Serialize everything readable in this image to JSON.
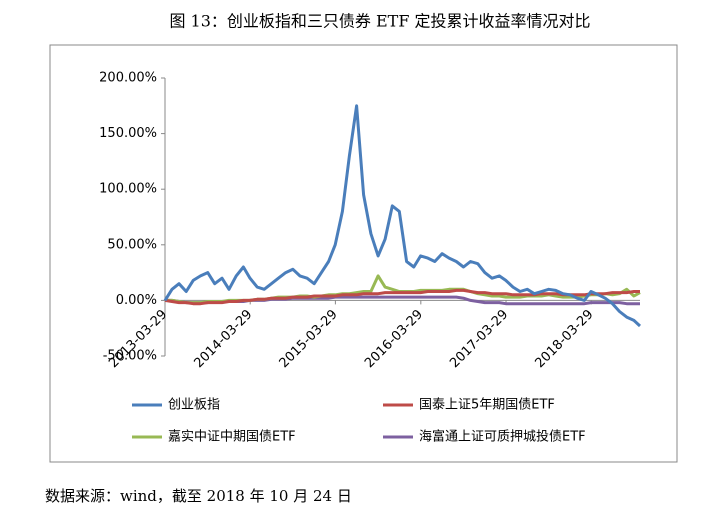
{
  "chart_data": {
    "type": "line",
    "title": "图 13：创业板指和三只债券 ETF 定投累计收益率情况对比",
    "source": "数据来源：wind，截至 2018 年 10 月 24 日",
    "x": [
      "2013-03-29",
      "2013-04-28",
      "2013-05-28",
      "2013-06-28",
      "2013-07-28",
      "2013-08-28",
      "2013-09-28",
      "2013-10-28",
      "2013-11-28",
      "2013-12-28",
      "2014-01-28",
      "2014-02-28",
      "2014-03-28",
      "2014-04-28",
      "2014-05-28",
      "2014-06-28",
      "2014-07-28",
      "2014-08-28",
      "2014-09-28",
      "2014-10-28",
      "2014-11-28",
      "2014-12-28",
      "2015-01-28",
      "2015-02-28",
      "2015-03-28",
      "2015-04-28",
      "2015-05-28",
      "2015-06-28",
      "2015-07-28",
      "2015-08-28",
      "2015-09-28",
      "2015-10-28",
      "2015-11-28",
      "2015-12-28",
      "2016-01-28",
      "2016-02-28",
      "2016-03-28",
      "2016-04-28",
      "2016-05-28",
      "2016-06-28",
      "2016-07-28",
      "2016-08-28",
      "2016-09-28",
      "2016-10-28",
      "2016-11-28",
      "2016-12-28",
      "2017-01-28",
      "2017-02-28",
      "2017-03-28",
      "2017-04-28",
      "2017-05-28",
      "2017-06-28",
      "2017-07-28",
      "2017-08-28",
      "2017-09-28",
      "2017-10-28",
      "2017-11-28",
      "2017-12-28",
      "2018-01-28",
      "2018-02-28",
      "2018-03-28",
      "2018-04-28",
      "2018-05-28",
      "2018-06-28",
      "2018-07-28",
      "2018-08-28",
      "2018-09-28",
      "2018-10-24"
    ],
    "xlim": [
      "2013-03-29",
      "2018-10-24"
    ],
    "xticks": [
      "2013-03-29",
      "2014-03-29",
      "2015-03-29",
      "2016-03-29",
      "2017-03-29",
      "2018-03-29"
    ],
    "ylim": [
      -50,
      200
    ],
    "yticks": [
      {
        "value": -50,
        "label": "-50.00%"
      },
      {
        "value": 0,
        "label": "0.00%"
      },
      {
        "value": 50,
        "label": "50.00%"
      },
      {
        "value": 100,
        "label": "100.00%"
      },
      {
        "value": 150,
        "label": "150.00%"
      },
      {
        "value": 200,
        "label": "200.00%"
      }
    ],
    "grid": false,
    "series": [
      {
        "name": "创业板指",
        "color": "#4a7ebb",
        "values": [
          0,
          10,
          15,
          8,
          18,
          22,
          25,
          15,
          20,
          10,
          22,
          30,
          20,
          12,
          10,
          15,
          20,
          25,
          28,
          22,
          20,
          15,
          25,
          35,
          50,
          80,
          130,
          175,
          95,
          60,
          40,
          55,
          85,
          80,
          35,
          30,
          40,
          38,
          35,
          42,
          38,
          35,
          30,
          35,
          33,
          25,
          20,
          22,
          18,
          12,
          8,
          10,
          6,
          8,
          10,
          9,
          6,
          5,
          2,
          0,
          8,
          5,
          2,
          -3,
          -10,
          -15,
          -18,
          -23
        ]
      },
      {
        "name": "国泰上证5年期国债ETF",
        "color": "#be4b48",
        "values": [
          0,
          -1,
          -2,
          -2,
          -3,
          -3,
          -2,
          -2,
          -2,
          -1,
          -1,
          0,
          0,
          1,
          1,
          2,
          2,
          2,
          3,
          3,
          3,
          4,
          4,
          4,
          4,
          5,
          5,
          5,
          6,
          6,
          6,
          7,
          7,
          7,
          7,
          7,
          7,
          8,
          8,
          8,
          8,
          9,
          9,
          8,
          7,
          7,
          6,
          6,
          6,
          5,
          5,
          5,
          5,
          6,
          6,
          6,
          5,
          5,
          5,
          5,
          6,
          6,
          6,
          7,
          7,
          7,
          8,
          8
        ]
      },
      {
        "name": "嘉实中证中期国债ETF",
        "color": "#98b954",
        "values": [
          0,
          0,
          -1,
          -2,
          -2,
          -2,
          -1,
          -1,
          -1,
          0,
          0,
          0,
          0,
          1,
          1,
          2,
          3,
          3,
          3,
          4,
          4,
          3,
          4,
          5,
          5,
          6,
          6,
          7,
          8,
          8,
          22,
          12,
          10,
          8,
          8,
          8,
          9,
          9,
          9,
          9,
          10,
          10,
          10,
          8,
          6,
          5,
          4,
          4,
          3,
          3,
          3,
          4,
          4,
          4,
          5,
          4,
          3,
          3,
          3,
          4,
          5,
          5,
          6,
          5,
          6,
          10,
          4,
          7
        ]
      },
      {
        "name": "海富通上证可质押城投债ETF",
        "color": "#7d60a0",
        "values": [
          0,
          0,
          -1,
          -2,
          -2,
          -2,
          -2,
          -1,
          -1,
          -1,
          -1,
          -1,
          0,
          0,
          0,
          1,
          1,
          1,
          2,
          2,
          2,
          2,
          2,
          2,
          3,
          3,
          3,
          3,
          3,
          3,
          3,
          3,
          3,
          3,
          3,
          3,
          3,
          3,
          3,
          3,
          3,
          3,
          2,
          0,
          -1,
          -2,
          -2,
          -2,
          -3,
          -3,
          -3,
          -3,
          -3,
          -3,
          -3,
          -3,
          -3,
          -3,
          -3,
          -3,
          -2,
          -2,
          -2,
          -2,
          -2,
          -3,
          -3,
          -3
        ]
      }
    ]
  }
}
